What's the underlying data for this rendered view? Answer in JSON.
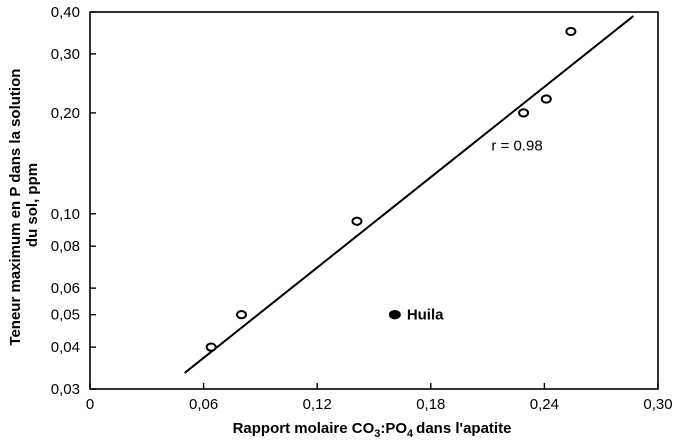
{
  "chart_data": {
    "type": "scatter",
    "title": "",
    "xlabel_parts": {
      "before": "Rapport molaire CO",
      "sub1": "3",
      "middle": ":PO",
      "sub2": "4",
      "after": "dans l'apatite"
    },
    "ylabel_lines": [
      "Teneur maximum en P dans la solution",
      "du sol, ppm"
    ],
    "x_ticks": [
      {
        "value": 0,
        "label": "0"
      },
      {
        "value": 0.06,
        "label": "0,06"
      },
      {
        "value": 0.12,
        "label": "0,12"
      },
      {
        "value": 0.18,
        "label": "0,18"
      },
      {
        "value": 0.24,
        "label": "0,24"
      },
      {
        "value": 0.3,
        "label": "0,30"
      }
    ],
    "y_ticks": [
      {
        "value": 0.03,
        "label": "0,03"
      },
      {
        "value": 0.04,
        "label": "0,04"
      },
      {
        "value": 0.05,
        "label": "0,05"
      },
      {
        "value": 0.06,
        "label": "0,06"
      },
      {
        "value": 0.08,
        "label": "0,08"
      },
      {
        "value": 0.1,
        "label": "0,10"
      },
      {
        "value": 0.2,
        "label": "0,20"
      },
      {
        "value": 0.3,
        "label": "0,30"
      },
      {
        "value": 0.4,
        "label": "0,40"
      }
    ],
    "xlim": [
      0,
      0.3
    ],
    "ylim": [
      0.03,
      0.4
    ],
    "y_scale": "log",
    "grid": false,
    "series": [
      {
        "marker": "open-circle",
        "points": [
          {
            "x": 0.064,
            "y": 0.04
          },
          {
            "x": 0.08,
            "y": 0.05
          },
          {
            "x": 0.141,
            "y": 0.095
          },
          {
            "x": 0.229,
            "y": 0.2
          },
          {
            "x": 0.241,
            "y": 0.22
          },
          {
            "x": 0.254,
            "y": 0.35
          }
        ]
      },
      {
        "marker": "filled-circle",
        "points": [
          {
            "x": 0.161,
            "y": 0.05,
            "label": "Huila"
          }
        ]
      }
    ],
    "fit_line": {
      "x": [
        0.05,
        0.287
      ],
      "y": [
        0.0335,
        0.389
      ]
    },
    "annotations": [
      {
        "text": "r = 0.98",
        "x": 0.212,
        "y": 0.16
      }
    ]
  }
}
